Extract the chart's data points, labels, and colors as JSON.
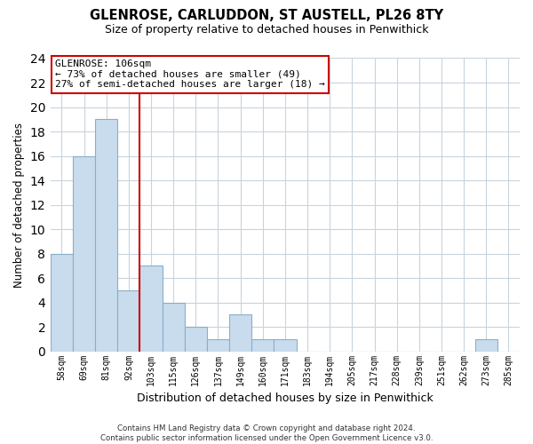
{
  "title": "GLENROSE, CARLUDDON, ST AUSTELL, PL26 8TY",
  "subtitle": "Size of property relative to detached houses in Penwithick",
  "xlabel": "Distribution of detached houses by size in Penwithick",
  "ylabel": "Number of detached properties",
  "bin_labels": [
    "58sqm",
    "69sqm",
    "81sqm",
    "92sqm",
    "103sqm",
    "115sqm",
    "126sqm",
    "137sqm",
    "149sqm",
    "160sqm",
    "171sqm",
    "183sqm",
    "194sqm",
    "205sqm",
    "217sqm",
    "228sqm",
    "239sqm",
    "251sqm",
    "262sqm",
    "273sqm",
    "285sqm"
  ],
  "bar_heights": [
    8,
    16,
    19,
    5,
    7,
    4,
    2,
    1,
    3,
    1,
    1,
    0,
    0,
    0,
    0,
    0,
    0,
    0,
    0,
    1,
    0
  ],
  "bar_color": "#c9dced",
  "bar_edge_color": "#8baec8",
  "vline_x_idx": 4,
  "vline_color": "#cc0000",
  "annotation_title": "GLENROSE: 106sqm",
  "annotation_line1": "← 73% of detached houses are smaller (49)",
  "annotation_line2": "27% of semi-detached houses are larger (18) →",
  "annotation_box_color": "#ffffff",
  "annotation_box_edge": "#cc0000",
  "ylim": [
    0,
    24
  ],
  "yticks": [
    0,
    2,
    4,
    6,
    8,
    10,
    12,
    14,
    16,
    18,
    20,
    22,
    24
  ],
  "footer": "Contains HM Land Registry data © Crown copyright and database right 2024.\nContains public sector information licensed under the Open Government Licence v3.0.",
  "background_color": "#ffffff",
  "grid_color": "#c8d4de"
}
